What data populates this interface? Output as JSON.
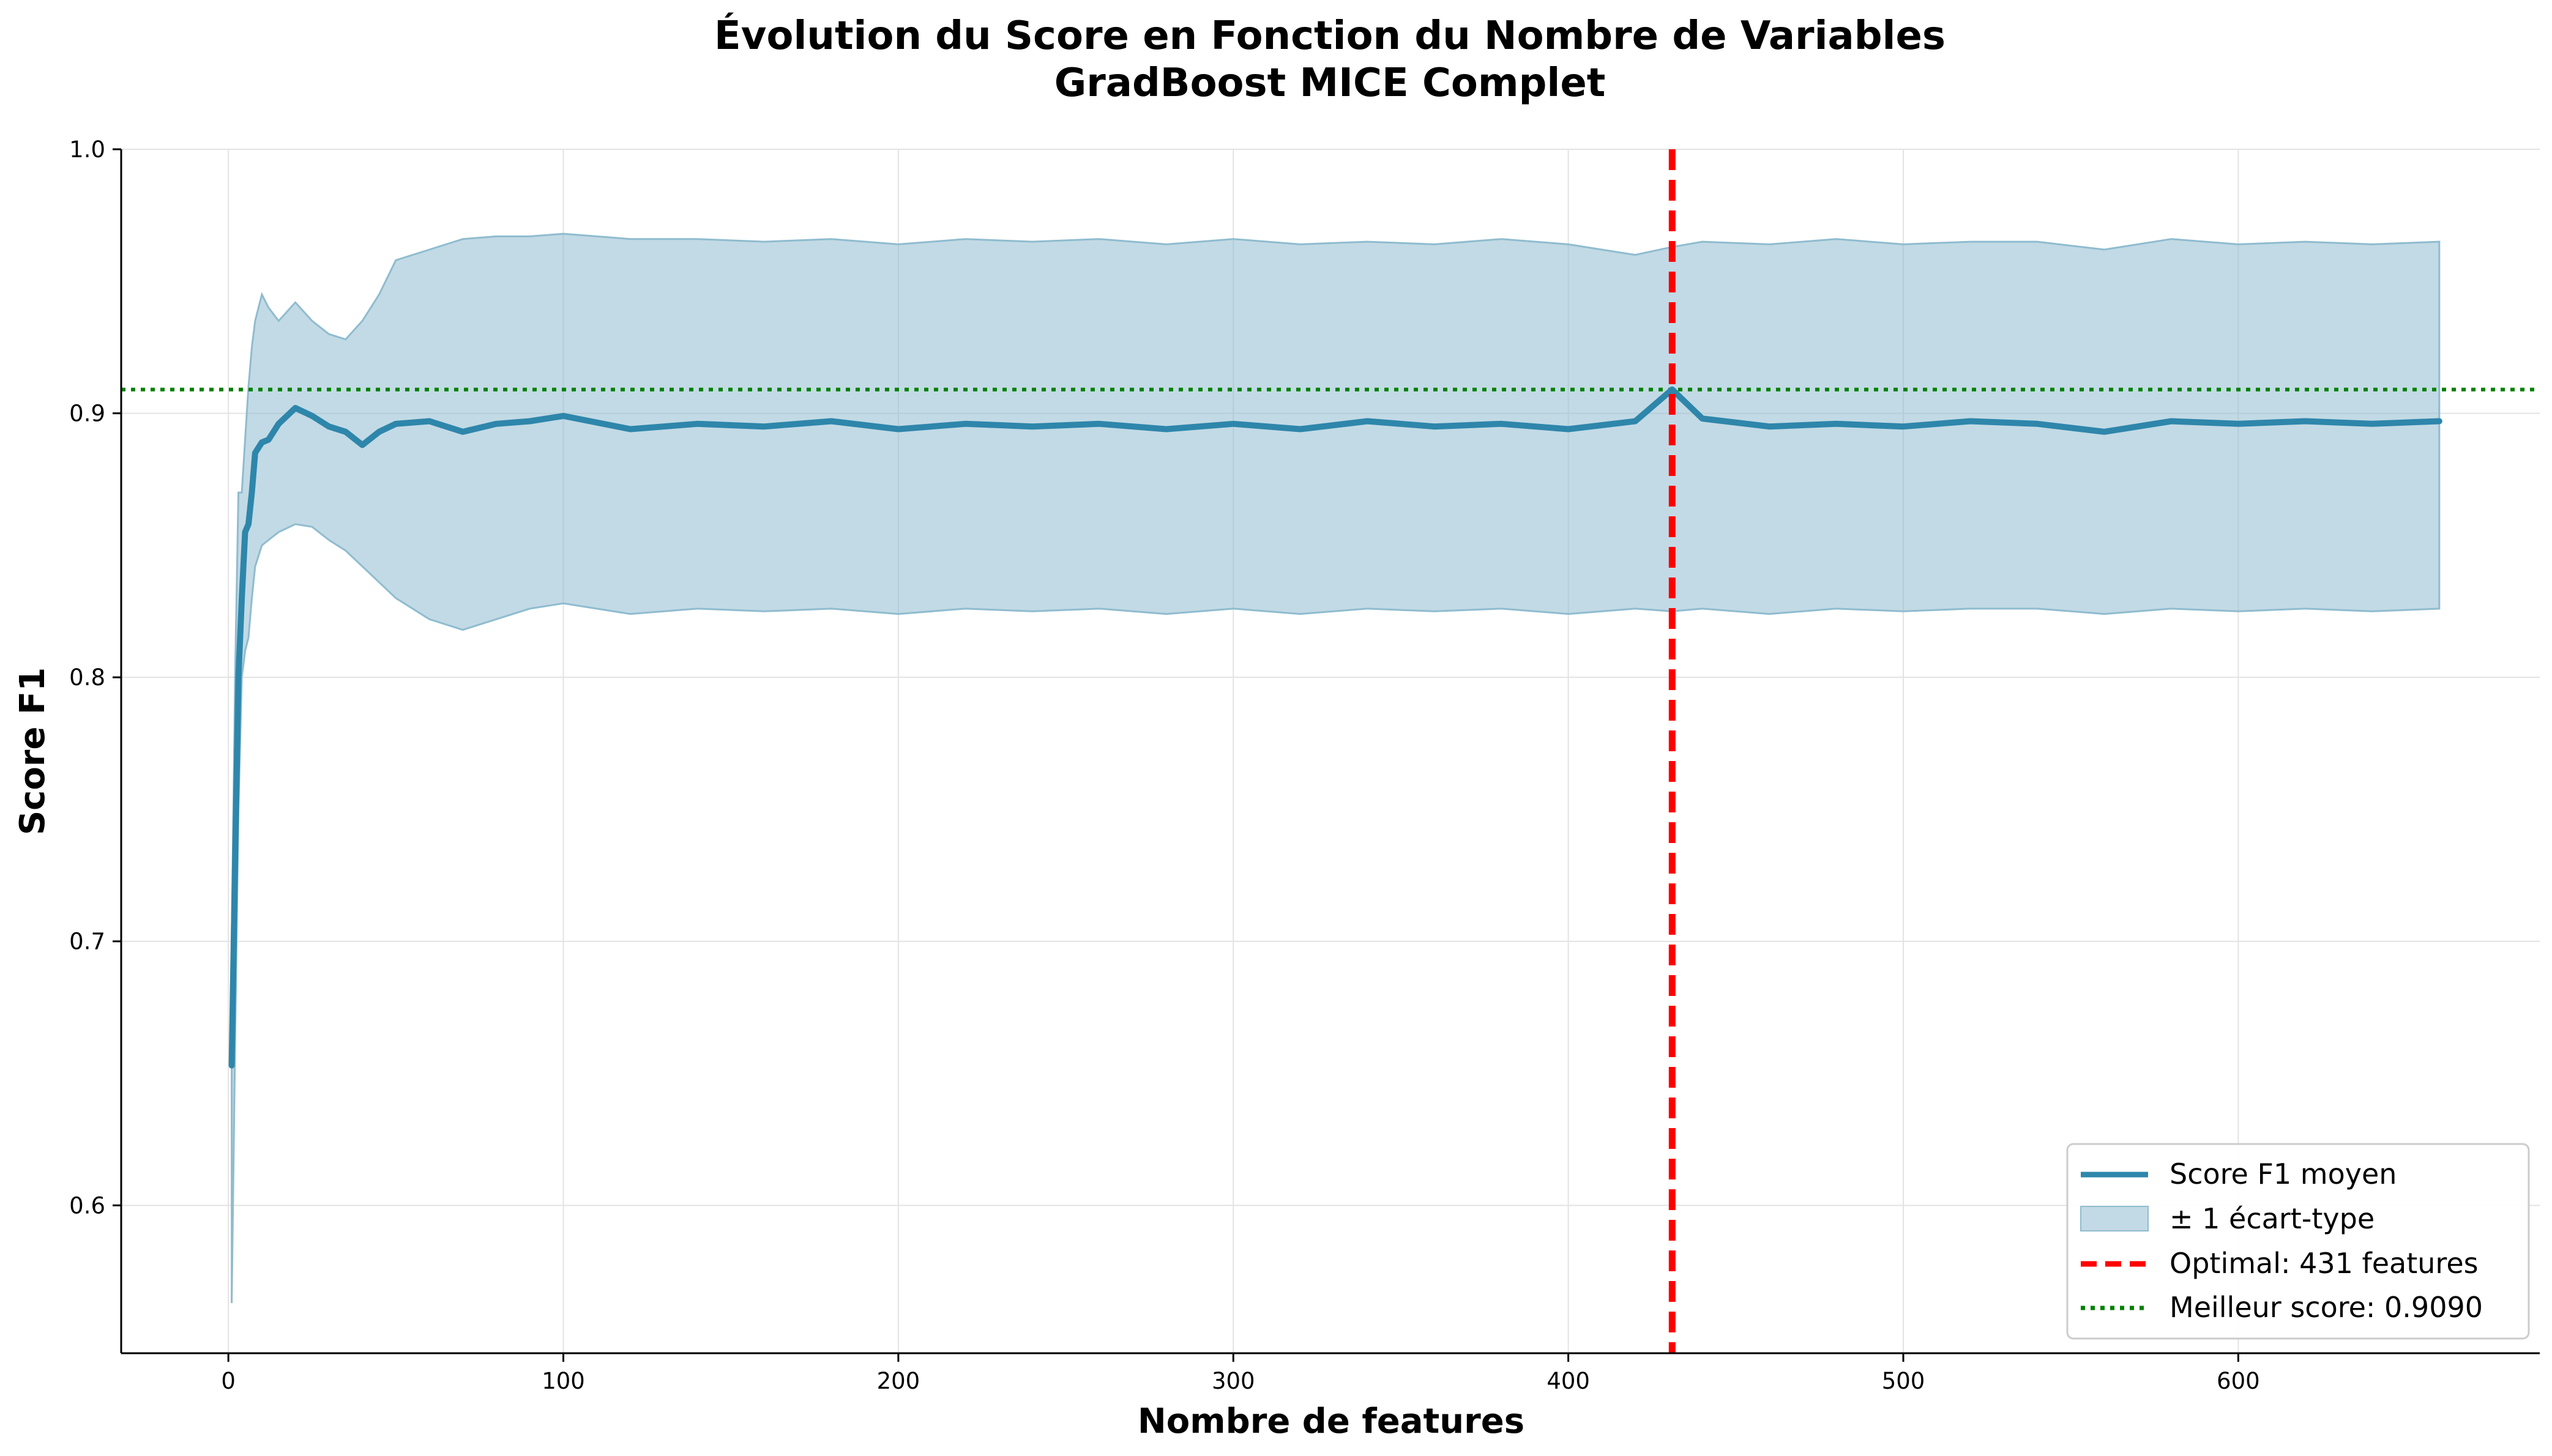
{
  "chart_data": {
    "type": "line",
    "title": "Évolution du Score en Fonction du Nombre de Variables",
    "subtitle": "GradBoost MICE Complet",
    "xlabel": "Nombre de features",
    "ylabel": "Score F1",
    "xlim": [
      -32,
      690
    ],
    "ylim": [
      0.544,
      1.0
    ],
    "x_ticks": [
      0,
      100,
      200,
      300,
      400,
      500,
      600
    ],
    "y_ticks": [
      0.6,
      0.7,
      0.8,
      0.9,
      1.0
    ],
    "x_tick_labels": [
      "0",
      "100",
      "200",
      "300",
      "400",
      "500",
      "600"
    ],
    "y_tick_labels": [
      "0.6",
      "0.7",
      "0.8",
      "0.9",
      "1.0"
    ],
    "grid": true,
    "legend_position": "bottom-right",
    "series": [
      {
        "name": "Score F1 moyen",
        "kind": "mean_line",
        "color": "#2e86ab",
        "x": [
          1,
          2,
          3,
          4,
          5,
          6,
          7,
          8,
          10,
          12,
          15,
          20,
          25,
          30,
          35,
          40,
          45,
          50,
          60,
          70,
          80,
          90,
          100,
          120,
          140,
          160,
          180,
          200,
          220,
          240,
          260,
          280,
          300,
          320,
          340,
          360,
          380,
          400,
          420,
          431,
          440,
          460,
          480,
          500,
          520,
          540,
          560,
          580,
          600,
          620,
          640,
          660
        ],
        "values": [
          0.653,
          0.73,
          0.8,
          0.83,
          0.855,
          0.858,
          0.87,
          0.885,
          0.889,
          0.89,
          0.896,
          0.902,
          0.899,
          0.895,
          0.893,
          0.888,
          0.893,
          0.896,
          0.897,
          0.893,
          0.896,
          0.897,
          0.899,
          0.894,
          0.896,
          0.895,
          0.897,
          0.894,
          0.896,
          0.895,
          0.896,
          0.894,
          0.896,
          0.894,
          0.897,
          0.895,
          0.896,
          0.894,
          0.897,
          0.909,
          0.898,
          0.895,
          0.896,
          0.895,
          0.897,
          0.896,
          0.893,
          0.897,
          0.896,
          0.897,
          0.896,
          0.897
        ]
      },
      {
        "name": "± 1 écart-type",
        "kind": "band",
        "color": "#8fbccf",
        "x": [
          1,
          2,
          3,
          4,
          5,
          6,
          7,
          8,
          10,
          12,
          15,
          20,
          25,
          30,
          35,
          40,
          45,
          50,
          60,
          70,
          80,
          90,
          100,
          120,
          140,
          160,
          180,
          200,
          220,
          240,
          260,
          280,
          300,
          320,
          340,
          360,
          380,
          400,
          420,
          431,
          440,
          460,
          480,
          500,
          520,
          540,
          560,
          580,
          600,
          620,
          640,
          660
        ],
        "upper": [
          0.7,
          0.8,
          0.87,
          0.87,
          0.89,
          0.91,
          0.925,
          0.935,
          0.945,
          0.94,
          0.935,
          0.942,
          0.935,
          0.93,
          0.928,
          0.935,
          0.945,
          0.958,
          0.962,
          0.966,
          0.967,
          0.967,
          0.968,
          0.966,
          0.966,
          0.965,
          0.966,
          0.964,
          0.966,
          0.965,
          0.966,
          0.964,
          0.966,
          0.964,
          0.965,
          0.964,
          0.966,
          0.964,
          0.96,
          0.963,
          0.965,
          0.964,
          0.966,
          0.964,
          0.965,
          0.965,
          0.962,
          0.966,
          0.964,
          0.965,
          0.964,
          0.965
        ],
        "lower": [
          0.563,
          0.66,
          0.75,
          0.8,
          0.81,
          0.815,
          0.83,
          0.842,
          0.85,
          0.852,
          0.855,
          0.858,
          0.857,
          0.852,
          0.848,
          0.842,
          0.836,
          0.83,
          0.822,
          0.818,
          0.822,
          0.826,
          0.828,
          0.824,
          0.826,
          0.825,
          0.826,
          0.824,
          0.826,
          0.825,
          0.826,
          0.824,
          0.826,
          0.824,
          0.826,
          0.825,
          0.826,
          0.824,
          0.826,
          0.825,
          0.826,
          0.824,
          0.826,
          0.825,
          0.826,
          0.826,
          0.824,
          0.826,
          0.825,
          0.826,
          0.825,
          0.826
        ]
      },
      {
        "name": "Optimal: 431 features",
        "kind": "vline",
        "color": "#ff0000",
        "x": 431
      },
      {
        "name": "Meilleur score: 0.9090",
        "kind": "hline",
        "color": "#008000",
        "y": 0.909
      }
    ]
  }
}
